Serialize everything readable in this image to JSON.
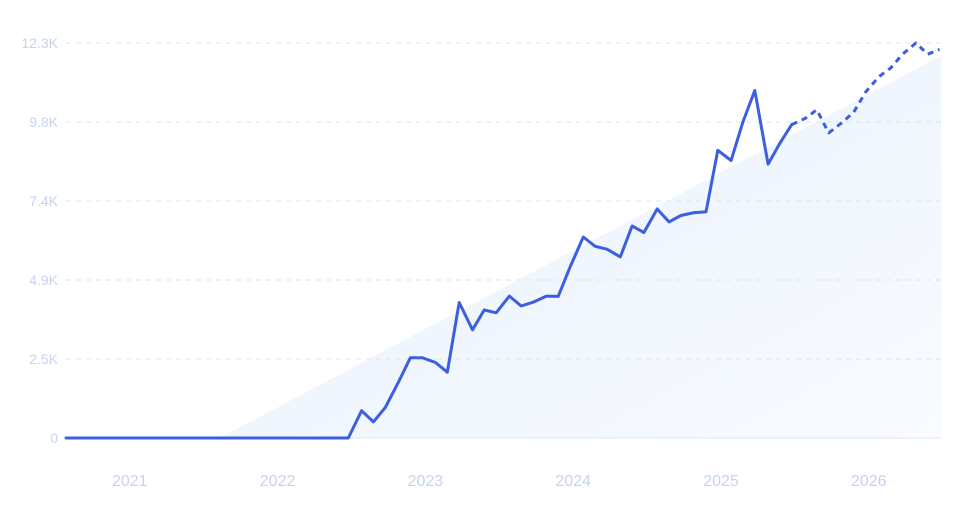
{
  "colors": {
    "line": "#3b5fe0",
    "trend_fill_start": "#e8f1fd",
    "trend_fill_end": "#f8fbff",
    "grid": "#dfe3ea",
    "tick_text": "#c5d3ee"
  },
  "chart_data": {
    "type": "line",
    "title": "",
    "xlabel": "",
    "ylabel": "",
    "grid": true,
    "legend": "none",
    "y_ticks": [
      "0",
      "2.5K",
      "4.9K",
      "7.4K",
      "9.8K",
      "12.3K"
    ],
    "y_tick_values": [
      0,
      2460,
      4920,
      7380,
      9840,
      12300
    ],
    "x_ticks": [
      "2021",
      "2022",
      "2023",
      "2024",
      "2025",
      "2026"
    ],
    "x_tick_values": [
      2021.0,
      2022.0,
      2023.0,
      2024.0,
      2025.0,
      2026.0
    ],
    "xlim": [
      2020.67,
      2026.59
    ],
    "ylim": [
      0,
      12300
    ],
    "series": [
      {
        "style": "solid",
        "x": [
          2020.67,
          2021.0,
          2021.5,
          2022.0,
          2022.5,
          2022.58,
          2022.67,
          2022.75,
          2022.83,
          2022.92,
          2023.0,
          2023.08,
          2023.17,
          2023.25,
          2023.33,
          2023.42,
          2023.5,
          2023.58,
          2023.67,
          2023.75,
          2023.83,
          2023.92,
          2024.0,
          2024.08,
          2024.17,
          2024.25,
          2024.33,
          2024.42,
          2024.5,
          2024.58,
          2024.67,
          2024.75,
          2024.83,
          2024.92,
          2025.0,
          2025.08,
          2025.17,
          2025.25,
          2025.33,
          2025.42,
          2025.5,
          2025.58
        ],
        "y": [
          0,
          0,
          0,
          0,
          0,
          0,
          850,
          500,
          950,
          1750,
          2500,
          2500,
          2350,
          2050,
          4220,
          3370,
          3990,
          3900,
          4420,
          4110,
          4230,
          4420,
          4410,
          5320,
          6260,
          5970,
          5880,
          5640,
          6600,
          6400,
          7130,
          6730,
          6930,
          7020,
          7040,
          8960,
          8640,
          9840,
          10820,
          8530,
          9180,
          9760
        ]
      },
      {
        "style": "dashed",
        "x": [
          2025.58,
          2025.67,
          2025.75,
          2025.83,
          2025.92,
          2026.0,
          2026.08,
          2026.17,
          2026.25,
          2026.33,
          2026.42,
          2026.5,
          2026.58
        ],
        "y": [
          9760,
          9950,
          10220,
          9500,
          9820,
          10150,
          10770,
          11250,
          11520,
          11950,
          12300,
          11950,
          12100
        ]
      }
    ],
    "trend": {
      "x": [
        2021.71,
        2026.59
      ],
      "y": [
        0,
        11900
      ]
    }
  }
}
